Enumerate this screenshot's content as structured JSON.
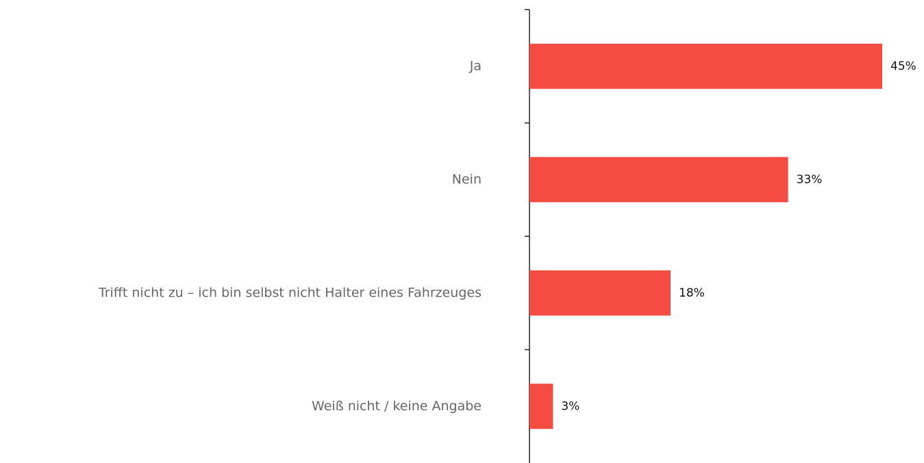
{
  "chart_data": {
    "type": "bar",
    "orientation": "horizontal",
    "categories": [
      "Ja",
      "Nein",
      "Trifft nicht zu – ich bin selbst nicht Halter eines Fahrzeuges",
      "Weiß nicht / keine Angabe"
    ],
    "values": [
      45,
      33,
      18,
      3
    ],
    "value_labels": [
      "45%",
      "33%",
      "18%",
      "3%"
    ],
    "color": "#f44b42"
  }
}
